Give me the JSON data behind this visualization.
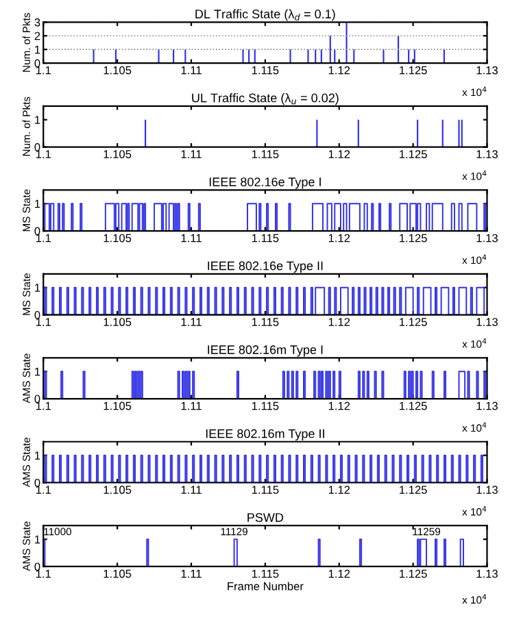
{
  "chart_data": [
    {
      "type": "bar",
      "title": "DL Traffic State (λ$_{d}$ = 0.1)",
      "ylabel": "Num. of Pkts",
      "annotations": [
        "x 10$^{4}$"
      ],
      "grid": "y",
      "xlim": [
        1.1,
        1.13
      ],
      "xticks": [
        1.1,
        1.105,
        1.11,
        1.115,
        1.12,
        1.125,
        1.13
      ],
      "ylim": [
        0,
        3
      ],
      "yticks": [
        0,
        1,
        2,
        3
      ],
      "series": [
        {
          "color": "#3030e8",
          "x": [
            1.1034,
            1.1049,
            1.1078,
            1.1088,
            1.1096,
            1.1135,
            1.1139,
            1.1143,
            1.1167,
            1.1179,
            1.1184,
            1.1188,
            1.1194,
            1.1197,
            1.1205,
            1.121,
            1.123,
            1.124,
            1.1247,
            1.1251,
            1.1271
          ],
          "values": [
            1,
            1,
            1,
            1,
            1,
            1,
            1,
            1,
            1,
            1,
            1,
            1,
            2,
            1,
            3,
            1,
            1,
            2,
            1,
            1,
            1
          ]
        }
      ]
    },
    {
      "type": "bar",
      "title": "UL Traffic State (λ$_{u}$ = 0.02)",
      "ylabel": "Num. of Pkts",
      "annotations": [
        "x 10$^{4}$"
      ],
      "xlim": [
        1.1,
        1.13
      ],
      "xticks": [
        1.1,
        1.105,
        1.11,
        1.115,
        1.12,
        1.125,
        1.13
      ],
      "ylim": [
        0,
        1.5
      ],
      "yticks": [
        0,
        1
      ],
      "series": [
        {
          "color": "#3030e8",
          "x": [
            1.1069,
            1.1185,
            1.1213,
            1.1253,
            1.127,
            1.1281,
            1.1283
          ],
          "values": [
            1,
            1,
            1,
            1,
            1,
            1,
            1
          ]
        }
      ]
    },
    {
      "type": "step",
      "title": "IEEE 802.16e Type I",
      "ylabel": "MS State",
      "annotations": [
        "x 10$^{4}$"
      ],
      "xlim": [
        1.1,
        1.13
      ],
      "xticks": [
        1.1,
        1.105,
        1.11,
        1.115,
        1.12,
        1.125,
        1.13
      ],
      "ylim": [
        0,
        1.5
      ],
      "yticks": [
        0,
        1
      ],
      "series": [
        {
          "color": "#3030e8",
          "x": [
            1.1,
            1.1001,
            1.1004,
            1.1005,
            1.1007,
            1.101,
            1.1011,
            1.1013,
            1.1014,
            1.1019,
            1.102,
            1.1025,
            1.1026,
            1.1042,
            1.1048,
            1.1049,
            1.1051,
            1.1053,
            1.1056,
            1.1057,
            1.1058,
            1.106,
            1.1064,
            1.1065,
            1.1067,
            1.1068,
            1.1069,
            1.1075,
            1.108,
            1.1081,
            1.1083,
            1.1085,
            1.1088,
            1.1089,
            1.109,
            1.1091,
            1.1092,
            1.1098,
            1.1099,
            1.1105,
            1.1106,
            1.1138,
            1.1144,
            1.1146,
            1.1147,
            1.1151,
            1.1152,
            1.1157,
            1.1158,
            1.1166,
            1.1167,
            1.1182,
            1.1189,
            1.1192,
            1.1195,
            1.1197,
            1.1201,
            1.1203,
            1.1205,
            1.1207,
            1.1214,
            1.1217,
            1.1219,
            1.1222,
            1.1223,
            1.1227,
            1.1228,
            1.1234,
            1.1235,
            1.1241,
            1.1246,
            1.1248,
            1.1252,
            1.1253,
            1.1255,
            1.1259,
            1.1261,
            1.1263,
            1.127,
            1.1276,
            1.1278,
            1.1281,
            1.1283,
            1.1287,
            1.1293,
            1.1298,
            1.1299,
            1.13
          ],
          "values": [
            0,
            1,
            0,
            1,
            0,
            1,
            0,
            1,
            0,
            1,
            0,
            1,
            0,
            1,
            0,
            1,
            0,
            1,
            0,
            1,
            0,
            1,
            0,
            1,
            0,
            1,
            0,
            1,
            0,
            1,
            0,
            1,
            0,
            1,
            0,
            1,
            0,
            1,
            0,
            1,
            0,
            1,
            0,
            1,
            0,
            1,
            0,
            1,
            0,
            1,
            0,
            1,
            0,
            1,
            0,
            1,
            0,
            1,
            0,
            1,
            0,
            1,
            0,
            1,
            0,
            1,
            0,
            1,
            0,
            1,
            0,
            1,
            0,
            1,
            0,
            1,
            0,
            1,
            0,
            1,
            0,
            1,
            0,
            1,
            0,
            1,
            0,
            0
          ]
        }
      ]
    },
    {
      "type": "step",
      "title": "IEEE 802.16e Type II",
      "ylabel": "MS State",
      "annotations": [
        "x 10$^{4}$"
      ],
      "xlim": [
        1.1,
        1.13
      ],
      "xticks": [
        1.1,
        1.105,
        1.11,
        1.115,
        1.12,
        1.125,
        1.13
      ],
      "ylim": [
        0,
        1.5
      ],
      "yticks": [
        0,
        1
      ],
      "series": [
        {
          "color": "#3030e8",
          "x": [
            1.1,
            1.1001,
            1.1002,
            1.1006,
            1.1007,
            1.1011,
            1.1012,
            1.1016,
            1.1017,
            1.1021,
            1.1022,
            1.1026,
            1.1027,
            1.1031,
            1.1032,
            1.1036,
            1.1037,
            1.1041,
            1.1042,
            1.1046,
            1.1047,
            1.1051,
            1.1052,
            1.1056,
            1.1057,
            1.1061,
            1.1062,
            1.1066,
            1.1067,
            1.1071,
            1.1072,
            1.1076,
            1.1077,
            1.1081,
            1.1082,
            1.1086,
            1.1087,
            1.1091,
            1.1092,
            1.1096,
            1.1097,
            1.1101,
            1.1102,
            1.1106,
            1.1107,
            1.1111,
            1.1112,
            1.1116,
            1.1117,
            1.1121,
            1.1122,
            1.1126,
            1.1127,
            1.1131,
            1.1132,
            1.1136,
            1.1137,
            1.1141,
            1.1142,
            1.1146,
            1.1147,
            1.1151,
            1.1152,
            1.1156,
            1.1157,
            1.1161,
            1.1162,
            1.1166,
            1.1167,
            1.1171,
            1.1172,
            1.1176,
            1.1177,
            1.1181,
            1.1182,
            1.1184,
            1.119,
            1.1193,
            1.1194,
            1.1197,
            1.1198,
            1.1201,
            1.1206,
            1.1209,
            1.121,
            1.1213,
            1.1214,
            1.1217,
            1.1218,
            1.1221,
            1.1222,
            1.1225,
            1.1226,
            1.1229,
            1.123,
            1.1233,
            1.1234,
            1.1237,
            1.1238,
            1.1241,
            1.1242,
            1.1245,
            1.125,
            1.1253,
            1.1254,
            1.1257,
            1.1262,
            1.1265,
            1.1266,
            1.1269,
            1.1274,
            1.1277,
            1.1278,
            1.1281,
            1.1286,
            1.1289,
            1.129,
            1.1293,
            1.1298,
            1.13
          ],
          "values": [
            0,
            1,
            0,
            1,
            0,
            1,
            0,
            1,
            0,
            1,
            0,
            1,
            0,
            1,
            0,
            1,
            0,
            1,
            0,
            1,
            0,
            1,
            0,
            1,
            0,
            1,
            0,
            1,
            0,
            1,
            0,
            1,
            0,
            1,
            0,
            1,
            0,
            1,
            0,
            1,
            0,
            1,
            0,
            1,
            0,
            1,
            0,
            1,
            0,
            1,
            0,
            1,
            0,
            1,
            0,
            1,
            0,
            1,
            0,
            1,
            0,
            1,
            0,
            1,
            0,
            1,
            0,
            1,
            0,
            1,
            0,
            1,
            0,
            1,
            0,
            1,
            0,
            1,
            0,
            1,
            0,
            1,
            0,
            1,
            0,
            1,
            0,
            1,
            0,
            1,
            0,
            1,
            0,
            1,
            0,
            1,
            0,
            1,
            0,
            1,
            0,
            1,
            0,
            1,
            0,
            1,
            0,
            1,
            0,
            1,
            0,
            1,
            0,
            1,
            0,
            1,
            0,
            1,
            0,
            0
          ]
        }
      ]
    },
    {
      "type": "step",
      "title": "IEEE 802.16m Type I",
      "ylabel": "AMS State",
      "annotations": [
        "x 10$^{4}$"
      ],
      "xlim": [
        1.1,
        1.13
      ],
      "xticks": [
        1.1,
        1.105,
        1.11,
        1.115,
        1.12,
        1.125,
        1.13
      ],
      "ylim": [
        0,
        1.5
      ],
      "yticks": [
        0,
        1
      ],
      "series": [
        {
          "color": "#3030e8",
          "x": [
            1.1,
            1.1001,
            1.1002,
            1.1012,
            1.1013,
            1.1027,
            1.1028,
            1.106,
            1.1061,
            1.1062,
            1.1063,
            1.1064,
            1.1065,
            1.1066,
            1.1067,
            1.1091,
            1.1092,
            1.1094,
            1.1095,
            1.1096,
            1.1097,
            1.1098,
            1.1099,
            1.1101,
            1.1102,
            1.1131,
            1.1132,
            1.1162,
            1.1163,
            1.1165,
            1.1166,
            1.1168,
            1.1169,
            1.1171,
            1.1172,
            1.1176,
            1.1177,
            1.1183,
            1.1184,
            1.1186,
            1.1187,
            1.1188,
            1.1189,
            1.1191,
            1.1192,
            1.1193,
            1.1194,
            1.1196,
            1.1197,
            1.12,
            1.1201,
            1.1213,
            1.1214,
            1.1216,
            1.1217,
            1.1219,
            1.122,
            1.1224,
            1.1225,
            1.1229,
            1.123,
            1.1244,
            1.1245,
            1.1247,
            1.1248,
            1.1249,
            1.125,
            1.1252,
            1.1253,
            1.1255,
            1.1256,
            1.1263,
            1.1264,
            1.1271,
            1.1272,
            1.1281,
            1.1285,
            1.1287,
            1.1288,
            1.1293,
            1.1294,
            1.1298,
            1.1299,
            1.13
          ],
          "values": [
            0,
            1,
            0,
            1,
            0,
            1,
            0,
            1,
            0,
            1,
            0,
            1,
            0,
            1,
            0,
            1,
            0,
            1,
            0,
            1,
            0,
            1,
            0,
            1,
            0,
            1,
            0,
            1,
            0,
            1,
            0,
            1,
            0,
            1,
            0,
            1,
            0,
            1,
            0,
            1,
            0,
            1,
            0,
            1,
            0,
            1,
            0,
            1,
            0,
            1,
            0,
            1,
            0,
            1,
            0,
            1,
            0,
            1,
            0,
            1,
            0,
            1,
            0,
            1,
            0,
            1,
            0,
            1,
            0,
            1,
            0,
            1,
            0,
            1,
            0,
            1,
            0,
            1,
            0,
            1,
            0,
            1,
            0,
            0
          ]
        }
      ]
    },
    {
      "type": "step",
      "title": "IEEE 802.16m Type II",
      "ylabel": "AMS State",
      "annotations": [
        "x 10$^{4}$"
      ],
      "xlim": [
        1.1,
        1.13
      ],
      "xticks": [
        1.1,
        1.105,
        1.11,
        1.115,
        1.12,
        1.125,
        1.13
      ],
      "ylim": [
        0,
        1.5
      ],
      "yticks": [
        0,
        1
      ],
      "series": [
        {
          "color": "#3030e8",
          "x": [
            1.1,
            1.1001,
            1.1002,
            1.1006,
            1.1007,
            1.1011,
            1.1012,
            1.1016,
            1.1017,
            1.1021,
            1.1022,
            1.1026,
            1.1027,
            1.1031,
            1.1032,
            1.1036,
            1.1037,
            1.1041,
            1.1042,
            1.1046,
            1.1047,
            1.1051,
            1.1052,
            1.1056,
            1.1057,
            1.1061,
            1.1062,
            1.1066,
            1.1067,
            1.1071,
            1.1072,
            1.1076,
            1.1077,
            1.1081,
            1.1082,
            1.1086,
            1.1087,
            1.1091,
            1.1092,
            1.1096,
            1.1097,
            1.1101,
            1.1102,
            1.1106,
            1.1107,
            1.1111,
            1.1112,
            1.1116,
            1.1117,
            1.1121,
            1.1122,
            1.1126,
            1.1127,
            1.1131,
            1.1132,
            1.1136,
            1.1137,
            1.1141,
            1.1142,
            1.1146,
            1.1147,
            1.1151,
            1.1152,
            1.1156,
            1.1157,
            1.1161,
            1.1162,
            1.1166,
            1.1167,
            1.1171,
            1.1172,
            1.1176,
            1.1177,
            1.1181,
            1.1182,
            1.1186,
            1.1187,
            1.1191,
            1.1192,
            1.1196,
            1.1197,
            1.1201,
            1.1202,
            1.1206,
            1.1207,
            1.1211,
            1.1212,
            1.1216,
            1.1217,
            1.1221,
            1.1222,
            1.1226,
            1.1227,
            1.1231,
            1.1232,
            1.1236,
            1.1237,
            1.1241,
            1.1242,
            1.1246,
            1.1247,
            1.1251,
            1.1252,
            1.1256,
            1.1257,
            1.1261,
            1.1262,
            1.1266,
            1.1267,
            1.1271,
            1.1272,
            1.1276,
            1.1277,
            1.1281,
            1.1282,
            1.1286,
            1.1287,
            1.1291,
            1.1292,
            1.1296,
            1.1297,
            1.13
          ],
          "values": [
            0,
            1,
            0,
            1,
            0,
            1,
            0,
            1,
            0,
            1,
            0,
            1,
            0,
            1,
            0,
            1,
            0,
            1,
            0,
            1,
            0,
            1,
            0,
            1,
            0,
            1,
            0,
            1,
            0,
            1,
            0,
            1,
            0,
            1,
            0,
            1,
            0,
            1,
            0,
            1,
            0,
            1,
            0,
            1,
            0,
            1,
            0,
            1,
            0,
            1,
            0,
            1,
            0,
            1,
            0,
            1,
            0,
            1,
            0,
            1,
            0,
            1,
            0,
            1,
            0,
            1,
            0,
            1,
            0,
            1,
            0,
            1,
            0,
            1,
            0,
            1,
            0,
            1,
            0,
            1,
            0,
            1,
            0,
            1,
            0,
            1,
            0,
            1,
            0,
            1,
            0,
            1,
            0,
            1,
            0,
            1,
            0,
            1,
            0,
            1,
            0,
            1,
            0,
            1,
            0,
            1,
            0,
            1,
            0,
            1,
            0,
            1,
            0,
            1,
            0,
            1,
            0,
            1,
            0,
            1,
            0,
            0
          ]
        }
      ]
    },
    {
      "type": "step",
      "title": "PSWD",
      "ylabel": "AMS State",
      "xlabel": "Frame Number",
      "annotations": [
        "x 10$^{4}$",
        {
          "text": "11000",
          "x": 1.1,
          "y": 1
        },
        {
          "text": "11129",
          "x": 1.1129,
          "y": 1
        },
        {
          "text": "11259",
          "x": 1.1259,
          "y": 1
        }
      ],
      "xlim": [
        1.1,
        1.13
      ],
      "xticks": [
        1.1,
        1.105,
        1.11,
        1.115,
        1.12,
        1.125,
        1.13
      ],
      "ylim": [
        0,
        1.5
      ],
      "yticks": [
        0,
        1
      ],
      "series": [
        {
          "color": "#3030e8",
          "x": [
            1.1,
            1.1001,
            1.107,
            1.1071,
            1.1129,
            1.1131,
            1.1186,
            1.1187,
            1.1214,
            1.1215,
            1.1253,
            1.1254,
            1.1255,
            1.1259,
            1.1265,
            1.1266,
            1.1271,
            1.1272,
            1.1282,
            1.1284,
            1.13
          ],
          "values": [
            1,
            0,
            1,
            0,
            1,
            0,
            1,
            0,
            1,
            0,
            1,
            0,
            1,
            0,
            1,
            0,
            1,
            0,
            1,
            0,
            0
          ]
        }
      ]
    }
  ]
}
